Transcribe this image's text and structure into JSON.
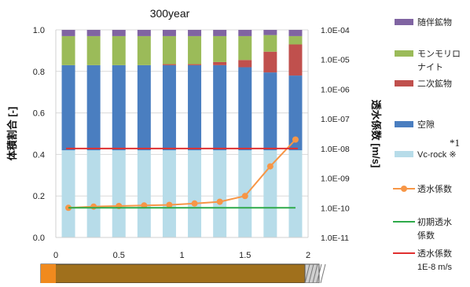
{
  "chart_data": {
    "type": "bar",
    "title": "300year",
    "ylabel": "体積割合 [-]",
    "y2label": "透水係数 [m/s]",
    "ylim": [
      0,
      1.0
    ],
    "y_ticks": [
      "0.0",
      "0.2",
      "0.4",
      "0.6",
      "0.8",
      "1.0"
    ],
    "y2_log_range": [
      -11,
      -4
    ],
    "y2_ticks": [
      "1.0E-11",
      "1.0E-10",
      "1.0E-09",
      "1.0E-08",
      "1.0E-07",
      "1.0E-06",
      "1.0E-05",
      "1.0E-04"
    ],
    "xlim": [
      0,
      2
    ],
    "x_ticks": [
      "0",
      "0.5",
      "1",
      "1.5",
      "2"
    ],
    "x": [
      0.1,
      0.3,
      0.5,
      0.7,
      0.9,
      1.1,
      1.3,
      1.5,
      1.7,
      1.9
    ],
    "grid": true,
    "legend_position": "right",
    "series": [
      {
        "name": "Vc-rock ※",
        "kind": "bar",
        "color": "#b7dce9",
        "values": [
          0.42,
          0.42,
          0.42,
          0.42,
          0.42,
          0.42,
          0.42,
          0.42,
          0.42,
          0.42
        ]
      },
      {
        "name": "空隙",
        "kind": "bar",
        "color": "#4a7ec0",
        "values": [
          0.41,
          0.41,
          0.41,
          0.41,
          0.41,
          0.41,
          0.41,
          0.4,
          0.375,
          0.36
        ]
      },
      {
        "name": "二次鉱物",
        "kind": "bar",
        "color": "#c0504d",
        "values": [
          0.0,
          0.0,
          0.0,
          0.0,
          0.005,
          0.005,
          0.015,
          0.035,
          0.1,
          0.15
        ]
      },
      {
        "name": "モンモリロナイト",
        "kind": "bar",
        "color": "#9bbb59",
        "values": [
          0.14,
          0.14,
          0.14,
          0.14,
          0.135,
          0.135,
          0.125,
          0.115,
          0.08,
          0.04
        ]
      },
      {
        "name": "随伴鉱物",
        "kind": "bar",
        "color": "#8064a2",
        "values": [
          0.03,
          0.03,
          0.03,
          0.03,
          0.03,
          0.03,
          0.03,
          0.03,
          0.025,
          0.03
        ]
      },
      {
        "name": "透水係数",
        "kind": "line",
        "axis": "right",
        "color": "#f79646",
        "marker": "circle",
        "values": [
          1e-10,
          1.1e-10,
          1.15e-10,
          1.2e-10,
          1.25e-10,
          1.4e-10,
          1.6e-10,
          2.5e-10,
          2.5e-09,
          2e-08
        ]
      },
      {
        "name": "初期透水係数",
        "kind": "line",
        "axis": "right",
        "color": "#2eaa4a",
        "values": [
          1e-10,
          1e-10,
          1e-10,
          1e-10,
          1e-10,
          1e-10,
          1e-10,
          1e-10,
          1e-10,
          1e-10
        ]
      },
      {
        "name": "透水係数 1E-8 m/s",
        "kind": "line",
        "axis": "right",
        "color": "#e03030",
        "values": [
          1e-08,
          1e-08,
          1e-08,
          1e-08,
          1e-08,
          1e-08,
          1e-08,
          1e-08,
          1e-08,
          1e-08
        ]
      }
    ],
    "legend_labels": [
      {
        "text": [
          "随伴鉱物"
        ],
        "color": "#8064a2",
        "marker": "rect"
      },
      {
        "text": [
          "モンモリロ",
          "ナイト"
        ],
        "color": "#9bbb59",
        "marker": "rect"
      },
      {
        "text": [
          "二次鉱物"
        ],
        "color": "#c0504d",
        "marker": "rect"
      },
      {
        "text": [
          "空隙"
        ],
        "color": "#4a7ec0",
        "marker": "rect"
      },
      {
        "text": [
          "Vc-rock ※"
        ],
        "color": "#b7dce9",
        "marker": "rect"
      },
      {
        "text": [
          "透水係数"
        ],
        "color": "#f79646",
        "marker": "line-dot"
      },
      {
        "text": [
          "初期透水",
          "係数"
        ],
        "color": "#2eaa4a",
        "marker": "line"
      },
      {
        "text": [
          "透水係数",
          "1E-8 m/s"
        ],
        "color": "#e03030",
        "marker": "line"
      }
    ],
    "annotation": "*1",
    "colors": {
      "axis_line": "#d0d0d0",
      "gridline": "#d9d9d9",
      "bottom_band": "#a0701c",
      "bottom_left_block": "#f08a1e"
    }
  }
}
